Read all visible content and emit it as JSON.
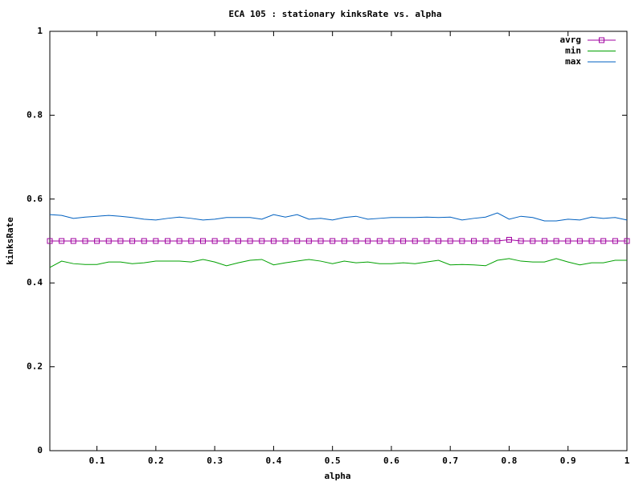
{
  "chart_data": {
    "type": "line",
    "title": "ECA 105 : stationary kinksRate vs. alpha",
    "x_label": "alpha",
    "y_label": "kinksRate",
    "x": [
      0.02,
      0.04,
      0.06,
      0.08,
      0.1,
      0.12,
      0.14,
      0.16,
      0.18,
      0.2,
      0.22,
      0.24,
      0.26,
      0.28,
      0.3,
      0.32,
      0.34,
      0.36,
      0.38,
      0.4,
      0.42,
      0.44,
      0.46,
      0.48,
      0.5,
      0.52,
      0.54,
      0.56,
      0.58,
      0.6,
      0.62,
      0.64,
      0.66,
      0.68,
      0.7,
      0.72,
      0.74,
      0.76,
      0.78,
      0.8,
      0.82,
      0.84,
      0.86,
      0.88,
      0.9,
      0.92,
      0.94,
      0.96,
      0.98,
      1
    ],
    "series": [
      {
        "name": "avrg",
        "color": "#a000a0",
        "marker": "square",
        "values": [
          0.5,
          0.5,
          0.5,
          0.5,
          0.5,
          0.5,
          0.5,
          0.5,
          0.5,
          0.5,
          0.5,
          0.5,
          0.5,
          0.5,
          0.5,
          0.5,
          0.5,
          0.5,
          0.5,
          0.5,
          0.5,
          0.5,
          0.5,
          0.5,
          0.5,
          0.5,
          0.5,
          0.5,
          0.5,
          0.5,
          0.5,
          0.5,
          0.5,
          0.5,
          0.5,
          0.5,
          0.5,
          0.5,
          0.5,
          0.503,
          0.5,
          0.5,
          0.5,
          0.5,
          0.5,
          0.5,
          0.5,
          0.5,
          0.5,
          0.5
        ]
      },
      {
        "name": "min",
        "color": "#00a000",
        "values": [
          0.437,
          0.452,
          0.446,
          0.444,
          0.444,
          0.45,
          0.45,
          0.446,
          0.448,
          0.452,
          0.452,
          0.452,
          0.45,
          0.456,
          0.45,
          0.441,
          0.448,
          0.454,
          0.456,
          0.443,
          0.448,
          0.452,
          0.456,
          0.452,
          0.446,
          0.452,
          0.448,
          0.45,
          0.446,
          0.446,
          0.448,
          0.446,
          0.45,
          0.454,
          0.443,
          0.444,
          0.443,
          0.441,
          0.454,
          0.458,
          0.452,
          0.45,
          0.45,
          0.458,
          0.45,
          0.443,
          0.448,
          0.448,
          0.454,
          0.454
        ]
      },
      {
        "name": "max",
        "color": "#0060c0",
        "values": [
          0.563,
          0.561,
          0.554,
          0.557,
          0.559,
          0.561,
          0.559,
          0.556,
          0.552,
          0.55,
          0.554,
          0.557,
          0.554,
          0.55,
          0.552,
          0.556,
          0.556,
          0.556,
          0.552,
          0.563,
          0.557,
          0.563,
          0.552,
          0.554,
          0.55,
          0.556,
          0.559,
          0.552,
          0.554,
          0.556,
          0.556,
          0.556,
          0.557,
          0.556,
          0.557,
          0.55,
          0.554,
          0.557,
          0.567,
          0.552,
          0.559,
          0.556,
          0.548,
          0.548,
          0.552,
          0.55,
          0.557,
          0.554,
          0.556,
          0.55
        ]
      }
    ],
    "xlim": [
      0.02,
      1
    ],
    "xticks": [
      0.1,
      0.2,
      0.3,
      0.4,
      0.5,
      0.6,
      0.7,
      0.8,
      0.9,
      1
    ],
    "ylim": [
      0,
      1
    ],
    "yticks": [
      0,
      0.2,
      0.4,
      0.6,
      0.8,
      1
    ],
    "grid": false,
    "legend": "top-right"
  }
}
